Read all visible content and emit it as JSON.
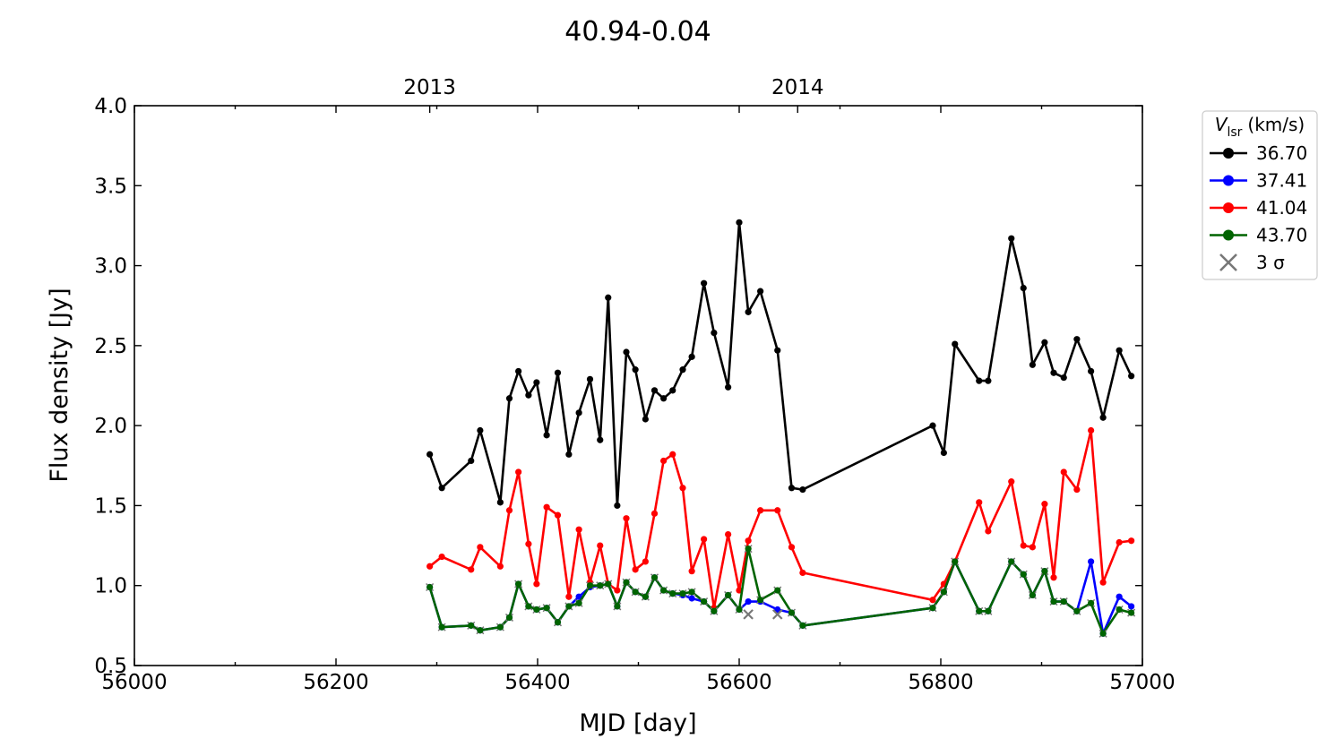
{
  "chart_data": {
    "type": "line",
    "title": "40.94-0.04",
    "xlabel": "MJD [day]",
    "ylabel": "Flux density [Jy]",
    "xlim": [
      56000,
      57000
    ],
    "ylim": [
      0.5,
      4.0
    ],
    "xticks": [
      56000,
      56200,
      56400,
      56600,
      56800,
      57000
    ],
    "xtick_labels": [
      "56000",
      "56200",
      "56400",
      "56600",
      "56800",
      "57000"
    ],
    "yticks": [
      0.5,
      1.0,
      1.5,
      2.0,
      2.5,
      3.0,
      3.5,
      4.0
    ],
    "ytick_labels": [
      "0.5",
      "1.0",
      "1.5",
      "2.0",
      "2.5",
      "3.0",
      "3.5",
      "4.0"
    ],
    "top_axis": {
      "ticks": [
        56293,
        56658
      ],
      "labels": [
        "2013",
        "2014"
      ]
    },
    "legend": {
      "title_main": "V",
      "title_sub": "lsr",
      "title_unit": "(km/s)",
      "placement": "outside-right",
      "sigma_label": "3 σ"
    },
    "grid": false,
    "series": [
      {
        "name": "36.70",
        "color": "#000000",
        "x": [
          56293,
          56305,
          56334,
          56343,
          56363,
          56372,
          56381,
          56391,
          56399,
          56409,
          56420,
          56431,
          56441,
          56452,
          56462,
          56470,
          56479,
          56488,
          56497,
          56507,
          56516,
          56525,
          56534,
          56544,
          56553,
          56565,
          56575,
          56589,
          56600,
          56609,
          56621,
          56638,
          56652,
          56663,
          56792,
          56803,
          56814,
          56838,
          56847,
          56870,
          56882,
          56891,
          56903,
          56912,
          56922,
          56935,
          56949,
          56961,
          56977,
          56989
        ],
        "y": [
          1.82,
          1.61,
          1.78,
          1.97,
          1.52,
          2.17,
          2.34,
          2.19,
          2.27,
          1.94,
          2.33,
          1.82,
          2.08,
          2.29,
          1.91,
          2.8,
          1.5,
          2.46,
          2.35,
          2.04,
          2.22,
          2.17,
          2.22,
          2.35,
          2.43,
          2.89,
          2.58,
          2.24,
          3.27,
          2.71,
          2.84,
          2.47,
          1.61,
          1.6,
          2.0,
          1.83,
          2.51,
          2.28,
          2.28,
          3.17,
          2.86,
          2.38,
          2.52,
          2.33,
          2.3,
          2.54,
          2.34,
          2.05,
          2.47,
          2.31
        ]
      },
      {
        "name": "37.41",
        "color": "#0000ff",
        "x": [
          56293,
          56305,
          56334,
          56343,
          56363,
          56372,
          56381,
          56391,
          56399,
          56409,
          56420,
          56431,
          56441,
          56452,
          56462,
          56470,
          56479,
          56488,
          56497,
          56507,
          56516,
          56525,
          56534,
          56544,
          56553,
          56565,
          56575,
          56589,
          56600,
          56609,
          56621,
          56638,
          56652,
          56663,
          56792,
          56803,
          56814,
          56838,
          56847,
          56870,
          56882,
          56891,
          56903,
          56912,
          56922,
          56935,
          56949,
          56961,
          56977,
          56989
        ],
        "y": [
          0.99,
          0.74,
          0.75,
          0.72,
          0.74,
          0.8,
          1.01,
          0.87,
          0.85,
          0.86,
          0.77,
          0.87,
          0.93,
          0.99,
          1.0,
          1.01,
          0.87,
          1.02,
          0.96,
          0.93,
          1.05,
          0.97,
          0.95,
          0.94,
          0.92,
          0.9,
          0.84,
          0.94,
          0.85,
          0.9,
          0.9,
          0.85,
          0.83,
          0.75,
          0.86,
          0.96,
          1.15,
          0.84,
          0.84,
          1.15,
          1.07,
          0.94,
          1.09,
          0.9,
          0.9,
          0.84,
          1.15,
          0.7,
          0.93,
          0.87
        ]
      },
      {
        "name": "41.04",
        "color": "#ff0000",
        "x": [
          56293,
          56305,
          56334,
          56343,
          56363,
          56372,
          56381,
          56391,
          56399,
          56409,
          56420,
          56431,
          56441,
          56452,
          56462,
          56470,
          56479,
          56488,
          56497,
          56507,
          56516,
          56525,
          56534,
          56544,
          56553,
          56565,
          56575,
          56589,
          56600,
          56609,
          56621,
          56638,
          56652,
          56663,
          56792,
          56803,
          56814,
          56838,
          56847,
          56870,
          56882,
          56891,
          56903,
          56912,
          56922,
          56935,
          56949,
          56961,
          56977,
          56989
        ],
        "y": [
          1.12,
          1.18,
          1.1,
          1.24,
          1.12,
          1.47,
          1.71,
          1.26,
          1.01,
          1.49,
          1.44,
          0.93,
          1.35,
          1.02,
          1.25,
          1.01,
          0.97,
          1.42,
          1.1,
          1.15,
          1.45,
          1.78,
          1.82,
          1.61,
          1.09,
          1.29,
          0.86,
          1.32,
          0.97,
          1.28,
          1.47,
          1.47,
          1.24,
          1.08,
          0.91,
          1.01,
          1.15,
          1.52,
          1.34,
          1.65,
          1.25,
          1.24,
          1.51,
          1.05,
          1.71,
          1.6,
          1.97,
          1.02,
          1.27,
          1.28
        ]
      },
      {
        "name": "43.70",
        "color": "#006400",
        "x": [
          56293,
          56305,
          56334,
          56343,
          56363,
          56372,
          56381,
          56391,
          56399,
          56409,
          56420,
          56431,
          56441,
          56452,
          56462,
          56470,
          56479,
          56488,
          56497,
          56507,
          56516,
          56525,
          56534,
          56544,
          56553,
          56565,
          56575,
          56589,
          56600,
          56609,
          56621,
          56638,
          56652,
          56663,
          56792,
          56803,
          56814,
          56838,
          56847,
          56870,
          56882,
          56891,
          56903,
          56912,
          56922,
          56935,
          56949,
          56961,
          56977,
          56989
        ],
        "y": [
          0.99,
          0.74,
          0.75,
          0.72,
          0.74,
          0.8,
          1.01,
          0.87,
          0.85,
          0.86,
          0.77,
          0.87,
          0.89,
          1.0,
          1.0,
          1.01,
          0.87,
          1.02,
          0.96,
          0.93,
          1.05,
          0.97,
          0.95,
          0.95,
          0.96,
          0.9,
          0.84,
          0.94,
          0.85,
          1.23,
          0.91,
          0.97,
          0.83,
          0.75,
          0.86,
          0.96,
          1.15,
          0.84,
          0.84,
          1.15,
          1.07,
          0.94,
          1.09,
          0.9,
          0.9,
          0.84,
          0.89,
          0.7,
          0.85,
          0.83
        ]
      }
    ],
    "three_sigma": {
      "color": "#777777",
      "x": [
        56609,
        56638
      ],
      "y": [
        0.82,
        0.82
      ]
    }
  }
}
